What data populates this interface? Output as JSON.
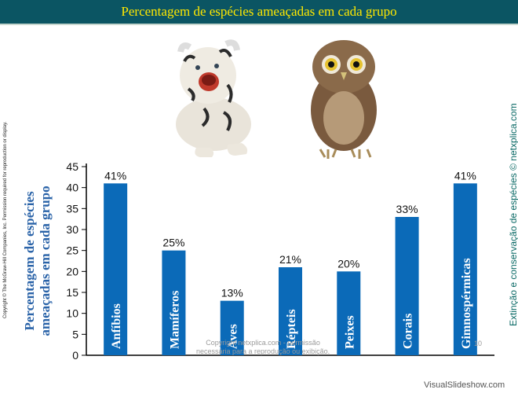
{
  "header": {
    "title": "Percentagem de espécies ameaçadas em cada grupo"
  },
  "side": {
    "copyright": "Copyright © The McGraw-Hill Companies, Inc. Permission required for reproduction or display.",
    "credit": "Extinção e conservação de espécies © netxplica.com"
  },
  "watermark": {
    "line1": "Copyright netxplica.com - permissão",
    "line2": "necessária para a reprodução ou exibição.",
    "page": "10",
    "footer": "VisualSlideshow.com"
  },
  "photos": {
    "left": "tiger-cub-image",
    "right": "owl-image"
  },
  "colors": {
    "bar": "#0b6ab8",
    "title_bg": "#0b5563",
    "title_text": "#ffe800",
    "y_title": "#2a63a8"
  },
  "chart_data": {
    "type": "bar",
    "categories": [
      "Anfíbios",
      "Mamíferos",
      "Aves",
      "Répteis",
      "Peixes",
      "Corais",
      "Gimnospérmicas"
    ],
    "values": [
      41,
      25,
      13,
      21,
      20,
      33,
      41
    ],
    "value_labels": [
      "41%",
      "25%",
      "13%",
      "21%",
      "20%",
      "33%",
      "41%"
    ],
    "ylabel_lines": [
      "Percentagem de espécies",
      "ameaçadas em cada grupo"
    ],
    "ylim": [
      0,
      45
    ],
    "yticks": [
      0,
      5,
      10,
      15,
      20,
      25,
      30,
      35,
      40,
      45
    ],
    "grid": false
  }
}
